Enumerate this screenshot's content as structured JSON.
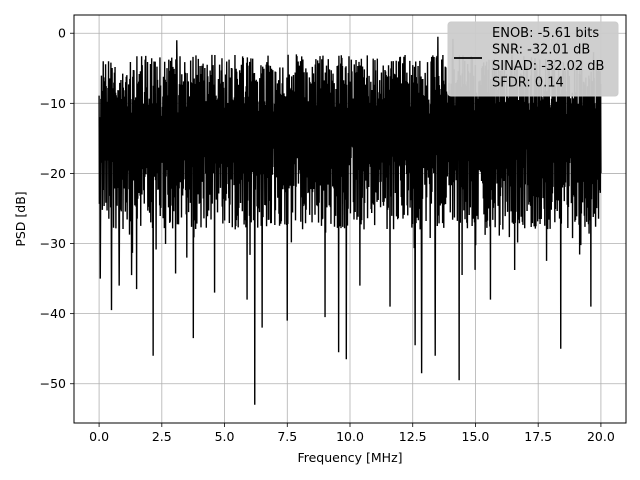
{
  "chart_data": {
    "type": "line",
    "xlabel": "Frequency [MHz]",
    "ylabel": "PSD [dB]",
    "xlim": [
      -1.0,
      21.0
    ],
    "ylim": [
      -55.6,
      2.6
    ],
    "xticks": [
      0.0,
      2.5,
      5.0,
      7.5,
      10.0,
      12.5,
      15.0,
      17.5,
      20.0
    ],
    "xtick_labels": [
      "0.0",
      "2.5",
      "5.0",
      "7.5",
      "10.0",
      "12.5",
      "15.0",
      "17.5",
      "20.0"
    ],
    "yticks": [
      0,
      -10,
      -20,
      -30,
      -40,
      -50
    ],
    "ytick_labels": [
      "0",
      "−10",
      "−20",
      "−30",
      "−40",
      "−50"
    ],
    "grid": true,
    "legend_position": "top-right",
    "legend": [
      "ENOB: -5.61 bits",
      "SNR: -32.01 dB",
      "SINAD: -32.02 dB",
      "SFDR: 0.14"
    ],
    "series": [
      {
        "color": "#000000",
        "noise_band": {
          "x_start": 0.0,
          "x_end": 20.0,
          "upper_dB": -3.0,
          "lower_dB": -28.0
        },
        "deep_nulls": [
          {
            "x": 0.05,
            "y": -35.0
          },
          {
            "x": 0.5,
            "y": -39.5
          },
          {
            "x": 0.8,
            "y": -36.0
          },
          {
            "x": 1.3,
            "y": -34.5
          },
          {
            "x": 1.5,
            "y": -36.5
          },
          {
            "x": 2.15,
            "y": -46.0
          },
          {
            "x": 3.75,
            "y": -43.5
          },
          {
            "x": 4.6,
            "y": -37.0
          },
          {
            "x": 5.9,
            "y": -38.0
          },
          {
            "x": 6.2,
            "y": -53.0
          },
          {
            "x": 6.5,
            "y": -42.0
          },
          {
            "x": 7.5,
            "y": -41.0
          },
          {
            "x": 9.0,
            "y": -40.5
          },
          {
            "x": 9.55,
            "y": -45.5
          },
          {
            "x": 9.85,
            "y": -46.5
          },
          {
            "x": 10.4,
            "y": -36.0
          },
          {
            "x": 11.6,
            "y": -39.0
          },
          {
            "x": 12.6,
            "y": -44.5
          },
          {
            "x": 12.85,
            "y": -48.5
          },
          {
            "x": 13.4,
            "y": -46.0
          },
          {
            "x": 14.35,
            "y": -49.5
          },
          {
            "x": 15.6,
            "y": -38.0
          },
          {
            "x": 18.4,
            "y": -45.0
          },
          {
            "x": 19.6,
            "y": -39.0
          }
        ],
        "peaks": [
          {
            "x": 0.05,
            "y": -2.5
          },
          {
            "x": 3.1,
            "y": -1.0
          },
          {
            "x": 13.5,
            "y": -0.5
          },
          {
            "x": 14.1,
            "y": -0.8
          },
          {
            "x": 19.7,
            "y": -2.7
          }
        ]
      }
    ]
  }
}
